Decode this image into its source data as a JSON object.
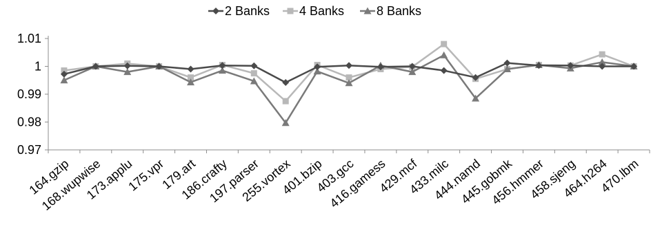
{
  "chart_data": {
    "type": "line",
    "title": "",
    "xlabel": "",
    "ylabel": "",
    "ylim": [
      0.97,
      1.01
    ],
    "yticks": [
      0.97,
      0.98,
      0.99,
      1,
      1.01
    ],
    "ytick_labels": [
      "0.97",
      "0.98",
      "0.99",
      "1",
      "1.01"
    ],
    "grid": false,
    "legend_position": "top",
    "categories": [
      "164.gzip",
      "168.wupwise",
      "173.applu",
      "175.vpr",
      "179.art",
      "186.crafty",
      "197.parser",
      "255.vortex",
      "401.bzip",
      "403.gcc",
      "416.gamess",
      "429.mcf",
      "433.milc",
      "444.namd",
      "445.gobmk",
      "456.hmmer",
      "458.sjeng",
      "464.h264",
      "470.lbm"
    ],
    "series": [
      {
        "name": "2 Banks",
        "color": "#4a4a4a",
        "marker": "diamond",
        "values": [
          0.9972,
          1.0,
          1.0002,
          1.0,
          0.999,
          1.0003,
          1.0002,
          0.9942,
          0.9998,
          1.0003,
          0.9998,
          1.0,
          0.9985,
          0.996,
          1.0012,
          1.0003,
          1.0003,
          1.0,
          1.0
        ]
      },
      {
        "name": "4 Banks",
        "color": "#b8b8b8",
        "marker": "square",
        "values": [
          0.9985,
          1.0,
          1.001,
          1.0,
          0.996,
          1.0005,
          0.9975,
          0.9875,
          1.0005,
          0.996,
          0.999,
          0.9998,
          1.008,
          0.9955,
          0.999,
          1.0005,
          1.0003,
          1.0043,
          1.0
        ]
      },
      {
        "name": "8 Banks",
        "color": "#7a7a7a",
        "marker": "triangle",
        "values": [
          0.995,
          1.0,
          0.998,
          1.0,
          0.9943,
          0.9985,
          0.9947,
          0.9797,
          0.9982,
          0.994,
          1.0003,
          0.998,
          1.004,
          0.9885,
          0.999,
          1.0005,
          0.9993,
          1.0015,
          1.0
        ]
      }
    ]
  }
}
